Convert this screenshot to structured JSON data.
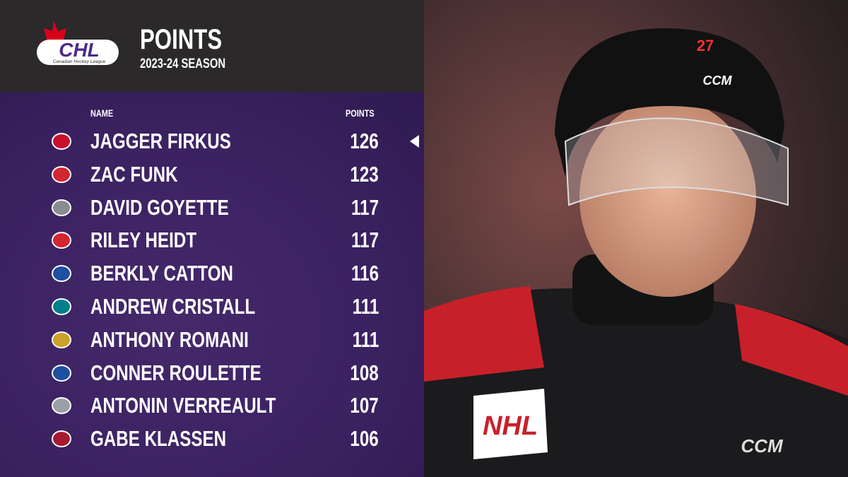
{
  "header": {
    "logo": {
      "text": "CHL",
      "subtext": "Canadian Hockey League"
    },
    "title": "POINTS",
    "subtitle": "2023-24 SEASON"
  },
  "table": {
    "columns": [
      "NAME",
      "POINTS"
    ],
    "rows": [
      {
        "name": "JAGGER FIRKUS",
        "points": 126,
        "logo_color": "#c8102e"
      },
      {
        "name": "ZAC FUNK",
        "points": 123,
        "logo_color": "#d22630"
      },
      {
        "name": "DAVID GOYETTE",
        "points": 117,
        "logo_color": "#8a8d8f"
      },
      {
        "name": "RILEY HEIDT",
        "points": 117,
        "logo_color": "#d22630"
      },
      {
        "name": "BERKLY CATTON",
        "points": 116,
        "logo_color": "#1e4fa0"
      },
      {
        "name": "ANDREW CRISTALL",
        "points": 111,
        "logo_color": "#00808a"
      },
      {
        "name": "ANTHONY ROMANI",
        "points": 111,
        "logo_color": "#c9a227"
      },
      {
        "name": "CONNER ROULETTE",
        "points": 108,
        "logo_color": "#1e4fa0"
      },
      {
        "name": "ANTONIN VERREAULT",
        "points": 107,
        "logo_color": "#9aa0a6"
      },
      {
        "name": "GABE KLASSEN",
        "points": 106,
        "logo_color": "#a6192e"
      }
    ],
    "highlighted_row": 0
  },
  "photo": {
    "helmet_number": "27",
    "helmet_brand": "CCM",
    "jersey_patch": "NHL",
    "jersey_brand": "CCM"
  }
}
